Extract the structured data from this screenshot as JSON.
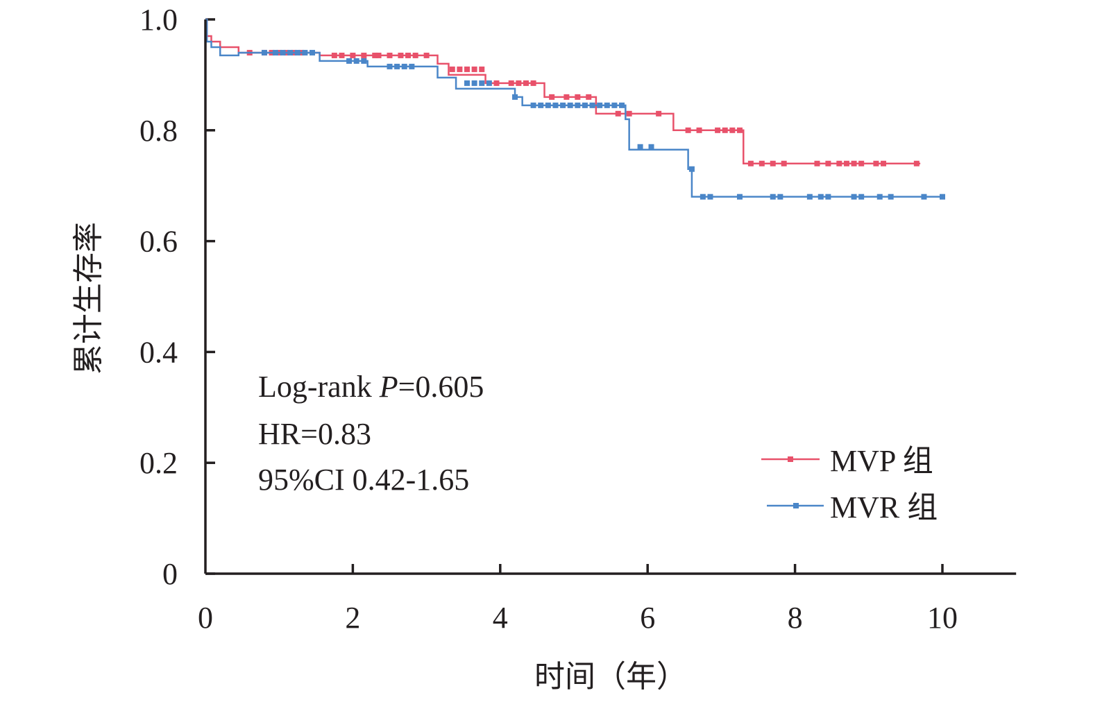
{
  "chart_data": {
    "type": "line",
    "xlabel": "时间（年）",
    "ylabel": "累计生存率",
    "xlim": [
      0,
      11
    ],
    "ylim": [
      0,
      1.0
    ],
    "x_ticks": [
      0,
      2,
      4,
      6,
      8,
      10
    ],
    "y_ticks": [
      0,
      0.2,
      0.4,
      0.6,
      0.8,
      1.0
    ],
    "x_tick_labels": [
      "0",
      "2",
      "4",
      "6",
      "8",
      "10"
    ],
    "y_tick_labels": [
      "0",
      "0.2",
      "0.4",
      "0.6",
      "0.8",
      "1.0"
    ],
    "grid": false,
    "legend_position": "bottom-right",
    "annotations": {
      "logrank_prefix": "Log-rank ",
      "logrank_p": "P",
      "logrank_value": "=0.605",
      "hr": "HR=0.83",
      "ci": "95%CI 0.42-1.65"
    },
    "series": [
      {
        "name": "MVP 组",
        "color": "#e8516a",
        "steps": [
          [
            0,
            1.0
          ],
          [
            0.02,
            0.97
          ],
          [
            0.08,
            0.96
          ],
          [
            0.2,
            0.95
          ],
          [
            0.45,
            0.94
          ],
          [
            1.55,
            0.935
          ],
          [
            3.15,
            0.92
          ],
          [
            3.3,
            0.9
          ],
          [
            3.8,
            0.885
          ],
          [
            4.6,
            0.86
          ],
          [
            5.3,
            0.83
          ],
          [
            6.35,
            0.8
          ],
          [
            7.3,
            0.74
          ],
          [
            9.7,
            0.74
          ]
        ],
        "censors": [
          [
            0.6,
            0.94
          ],
          [
            0.8,
            0.94
          ],
          [
            0.9,
            0.94
          ],
          [
            1.0,
            0.94
          ],
          [
            1.1,
            0.94
          ],
          [
            1.2,
            0.94
          ],
          [
            1.3,
            0.94
          ],
          [
            1.75,
            0.935
          ],
          [
            1.85,
            0.935
          ],
          [
            2.0,
            0.935
          ],
          [
            2.15,
            0.935
          ],
          [
            2.3,
            0.935
          ],
          [
            2.35,
            0.935
          ],
          [
            2.5,
            0.935
          ],
          [
            2.65,
            0.935
          ],
          [
            2.75,
            0.935
          ],
          [
            2.85,
            0.935
          ],
          [
            3.0,
            0.935
          ],
          [
            3.35,
            0.91
          ],
          [
            3.45,
            0.91
          ],
          [
            3.55,
            0.91
          ],
          [
            3.65,
            0.91
          ],
          [
            3.75,
            0.91
          ],
          [
            3.95,
            0.885
          ],
          [
            4.15,
            0.885
          ],
          [
            4.25,
            0.885
          ],
          [
            4.35,
            0.885
          ],
          [
            4.45,
            0.885
          ],
          [
            4.7,
            0.86
          ],
          [
            4.9,
            0.86
          ],
          [
            5.05,
            0.86
          ],
          [
            5.2,
            0.86
          ],
          [
            5.6,
            0.83
          ],
          [
            5.75,
            0.83
          ],
          [
            6.15,
            0.83
          ],
          [
            6.55,
            0.8
          ],
          [
            6.7,
            0.8
          ],
          [
            6.95,
            0.8
          ],
          [
            7.05,
            0.8
          ],
          [
            7.15,
            0.8
          ],
          [
            7.25,
            0.8
          ],
          [
            7.4,
            0.74
          ],
          [
            7.55,
            0.74
          ],
          [
            7.7,
            0.74
          ],
          [
            7.85,
            0.74
          ],
          [
            8.3,
            0.74
          ],
          [
            8.45,
            0.74
          ],
          [
            8.6,
            0.74
          ],
          [
            8.7,
            0.74
          ],
          [
            8.8,
            0.74
          ],
          [
            8.9,
            0.74
          ],
          [
            9.1,
            0.74
          ],
          [
            9.2,
            0.74
          ],
          [
            9.65,
            0.74
          ]
        ]
      },
      {
        "name": "MVR 组",
        "color": "#4a86c8",
        "steps": [
          [
            0,
            1.0
          ],
          [
            0.02,
            0.96
          ],
          [
            0.08,
            0.95
          ],
          [
            0.2,
            0.935
          ],
          [
            0.45,
            0.94
          ],
          [
            1.55,
            0.925
          ],
          [
            2.2,
            0.915
          ],
          [
            3.15,
            0.895
          ],
          [
            3.4,
            0.875
          ],
          [
            4.2,
            0.86
          ],
          [
            4.3,
            0.845
          ],
          [
            5.7,
            0.82
          ],
          [
            5.75,
            0.765
          ],
          [
            6.55,
            0.73
          ],
          [
            6.6,
            0.68
          ],
          [
            10.0,
            0.68
          ]
        ],
        "censors": [
          [
            0.8,
            0.94
          ],
          [
            0.95,
            0.94
          ],
          [
            1.05,
            0.94
          ],
          [
            1.15,
            0.94
          ],
          [
            1.25,
            0.94
          ],
          [
            1.35,
            0.94
          ],
          [
            1.45,
            0.94
          ],
          [
            1.95,
            0.925
          ],
          [
            2.05,
            0.925
          ],
          [
            2.15,
            0.925
          ],
          [
            2.5,
            0.915
          ],
          [
            2.6,
            0.915
          ],
          [
            2.7,
            0.915
          ],
          [
            2.8,
            0.915
          ],
          [
            3.55,
            0.885
          ],
          [
            3.65,
            0.885
          ],
          [
            3.75,
            0.885
          ],
          [
            3.85,
            0.885
          ],
          [
            4.2,
            0.86
          ],
          [
            4.45,
            0.845
          ],
          [
            4.55,
            0.845
          ],
          [
            4.65,
            0.845
          ],
          [
            4.75,
            0.845
          ],
          [
            4.85,
            0.845
          ],
          [
            4.95,
            0.845
          ],
          [
            5.05,
            0.845
          ],
          [
            5.15,
            0.845
          ],
          [
            5.25,
            0.845
          ],
          [
            5.35,
            0.845
          ],
          [
            5.45,
            0.845
          ],
          [
            5.55,
            0.845
          ],
          [
            5.65,
            0.845
          ],
          [
            5.9,
            0.77
          ],
          [
            6.05,
            0.77
          ],
          [
            6.6,
            0.73
          ],
          [
            6.75,
            0.68
          ],
          [
            6.85,
            0.68
          ],
          [
            7.25,
            0.68
          ],
          [
            7.7,
            0.68
          ],
          [
            7.8,
            0.68
          ],
          [
            8.2,
            0.68
          ],
          [
            8.35,
            0.68
          ],
          [
            8.45,
            0.68
          ],
          [
            8.8,
            0.68
          ],
          [
            8.9,
            0.68
          ],
          [
            9.15,
            0.68
          ],
          [
            9.3,
            0.68
          ],
          [
            9.75,
            0.68
          ],
          [
            10.0,
            0.68
          ]
        ]
      }
    ]
  }
}
